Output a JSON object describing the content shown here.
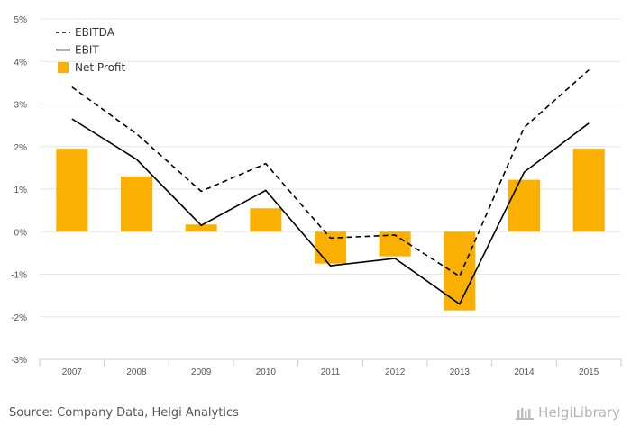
{
  "chart_data": {
    "type": "bar+line",
    "categories": [
      "2007",
      "2008",
      "2009",
      "2010",
      "2011",
      "2012",
      "2013",
      "2014",
      "2015"
    ],
    "series": [
      {
        "name": "EBITDA",
        "type": "line",
        "style": "dashed",
        "color": "#000000",
        "values": [
          3.4,
          2.3,
          0.95,
          1.6,
          -0.15,
          -0.08,
          -1.05,
          2.45,
          3.8
        ]
      },
      {
        "name": "EBIT",
        "type": "line",
        "style": "solid",
        "color": "#000000",
        "values": [
          2.65,
          1.7,
          0.15,
          0.97,
          -0.8,
          -0.63,
          -1.7,
          1.4,
          2.55
        ]
      },
      {
        "name": "Net Profit",
        "type": "bar",
        "color": "#f9b000",
        "values": [
          1.95,
          1.3,
          0.17,
          0.55,
          -0.75,
          -0.58,
          -1.85,
          1.22,
          1.95
        ]
      }
    ],
    "yticks": [
      "5%",
      "4%",
      "3%",
      "2%",
      "1%",
      "0%",
      "-1%",
      "-2%",
      "-3%"
    ],
    "ylim": [
      -3,
      5
    ],
    "grid": true,
    "legend": "top-left"
  },
  "footer": {
    "source": "Source: Company Data, Helgi Analytics",
    "brand": "HelgiLibrary"
  },
  "colors": {
    "bar": "#f9b000",
    "grid": "#e6e6e6",
    "axis": "#cccccc",
    "text": "#555555"
  }
}
